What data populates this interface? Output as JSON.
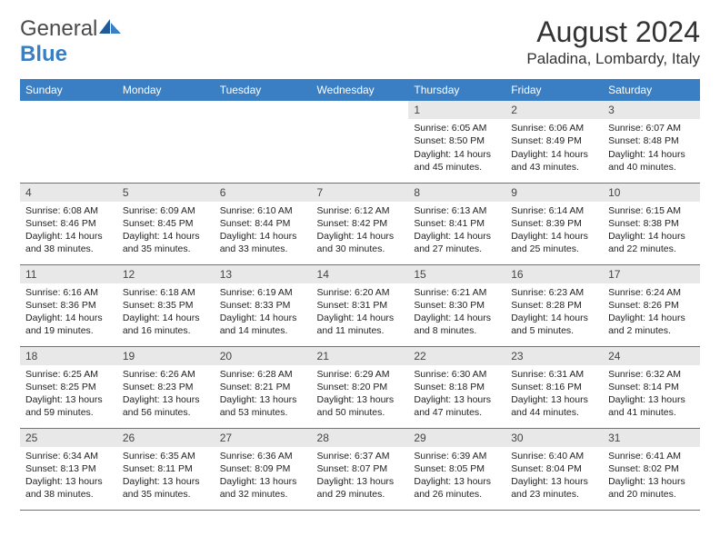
{
  "brand": {
    "word1": "General",
    "word2": "Blue"
  },
  "title": "August 2024",
  "location": "Paladina, Lombardy, Italy",
  "colors": {
    "header_bg": "#3a7fc4",
    "header_text": "#ffffff",
    "daynum_bg": "#e8e8e8",
    "border": "#3a7fc4",
    "body_text": "#222222",
    "title_text": "#333333"
  },
  "day_headers": [
    "Sunday",
    "Monday",
    "Tuesday",
    "Wednesday",
    "Thursday",
    "Friday",
    "Saturday"
  ],
  "weeks": [
    [
      {
        "empty": true
      },
      {
        "empty": true
      },
      {
        "empty": true
      },
      {
        "empty": true
      },
      {
        "num": "1",
        "sunrise": "6:05 AM",
        "sunset": "8:50 PM",
        "daylight": "14 hours and 45 minutes."
      },
      {
        "num": "2",
        "sunrise": "6:06 AM",
        "sunset": "8:49 PM",
        "daylight": "14 hours and 43 minutes."
      },
      {
        "num": "3",
        "sunrise": "6:07 AM",
        "sunset": "8:48 PM",
        "daylight": "14 hours and 40 minutes."
      }
    ],
    [
      {
        "num": "4",
        "sunrise": "6:08 AM",
        "sunset": "8:46 PM",
        "daylight": "14 hours and 38 minutes."
      },
      {
        "num": "5",
        "sunrise": "6:09 AM",
        "sunset": "8:45 PM",
        "daylight": "14 hours and 35 minutes."
      },
      {
        "num": "6",
        "sunrise": "6:10 AM",
        "sunset": "8:44 PM",
        "daylight": "14 hours and 33 minutes."
      },
      {
        "num": "7",
        "sunrise": "6:12 AM",
        "sunset": "8:42 PM",
        "daylight": "14 hours and 30 minutes."
      },
      {
        "num": "8",
        "sunrise": "6:13 AM",
        "sunset": "8:41 PM",
        "daylight": "14 hours and 27 minutes."
      },
      {
        "num": "9",
        "sunrise": "6:14 AM",
        "sunset": "8:39 PM",
        "daylight": "14 hours and 25 minutes."
      },
      {
        "num": "10",
        "sunrise": "6:15 AM",
        "sunset": "8:38 PM",
        "daylight": "14 hours and 22 minutes."
      }
    ],
    [
      {
        "num": "11",
        "sunrise": "6:16 AM",
        "sunset": "8:36 PM",
        "daylight": "14 hours and 19 minutes."
      },
      {
        "num": "12",
        "sunrise": "6:18 AM",
        "sunset": "8:35 PM",
        "daylight": "14 hours and 16 minutes."
      },
      {
        "num": "13",
        "sunrise": "6:19 AM",
        "sunset": "8:33 PM",
        "daylight": "14 hours and 14 minutes."
      },
      {
        "num": "14",
        "sunrise": "6:20 AM",
        "sunset": "8:31 PM",
        "daylight": "14 hours and 11 minutes."
      },
      {
        "num": "15",
        "sunrise": "6:21 AM",
        "sunset": "8:30 PM",
        "daylight": "14 hours and 8 minutes."
      },
      {
        "num": "16",
        "sunrise": "6:23 AM",
        "sunset": "8:28 PM",
        "daylight": "14 hours and 5 minutes."
      },
      {
        "num": "17",
        "sunrise": "6:24 AM",
        "sunset": "8:26 PM",
        "daylight": "14 hours and 2 minutes."
      }
    ],
    [
      {
        "num": "18",
        "sunrise": "6:25 AM",
        "sunset": "8:25 PM",
        "daylight": "13 hours and 59 minutes."
      },
      {
        "num": "19",
        "sunrise": "6:26 AM",
        "sunset": "8:23 PM",
        "daylight": "13 hours and 56 minutes."
      },
      {
        "num": "20",
        "sunrise": "6:28 AM",
        "sunset": "8:21 PM",
        "daylight": "13 hours and 53 minutes."
      },
      {
        "num": "21",
        "sunrise": "6:29 AM",
        "sunset": "8:20 PM",
        "daylight": "13 hours and 50 minutes."
      },
      {
        "num": "22",
        "sunrise": "6:30 AM",
        "sunset": "8:18 PM",
        "daylight": "13 hours and 47 minutes."
      },
      {
        "num": "23",
        "sunrise": "6:31 AM",
        "sunset": "8:16 PM",
        "daylight": "13 hours and 44 minutes."
      },
      {
        "num": "24",
        "sunrise": "6:32 AM",
        "sunset": "8:14 PM",
        "daylight": "13 hours and 41 minutes."
      }
    ],
    [
      {
        "num": "25",
        "sunrise": "6:34 AM",
        "sunset": "8:13 PM",
        "daylight": "13 hours and 38 minutes."
      },
      {
        "num": "26",
        "sunrise": "6:35 AM",
        "sunset": "8:11 PM",
        "daylight": "13 hours and 35 minutes."
      },
      {
        "num": "27",
        "sunrise": "6:36 AM",
        "sunset": "8:09 PM",
        "daylight": "13 hours and 32 minutes."
      },
      {
        "num": "28",
        "sunrise": "6:37 AM",
        "sunset": "8:07 PM",
        "daylight": "13 hours and 29 minutes."
      },
      {
        "num": "29",
        "sunrise": "6:39 AM",
        "sunset": "8:05 PM",
        "daylight": "13 hours and 26 minutes."
      },
      {
        "num": "30",
        "sunrise": "6:40 AM",
        "sunset": "8:04 PM",
        "daylight": "13 hours and 23 minutes."
      },
      {
        "num": "31",
        "sunrise": "6:41 AM",
        "sunset": "8:02 PM",
        "daylight": "13 hours and 20 minutes."
      }
    ]
  ]
}
